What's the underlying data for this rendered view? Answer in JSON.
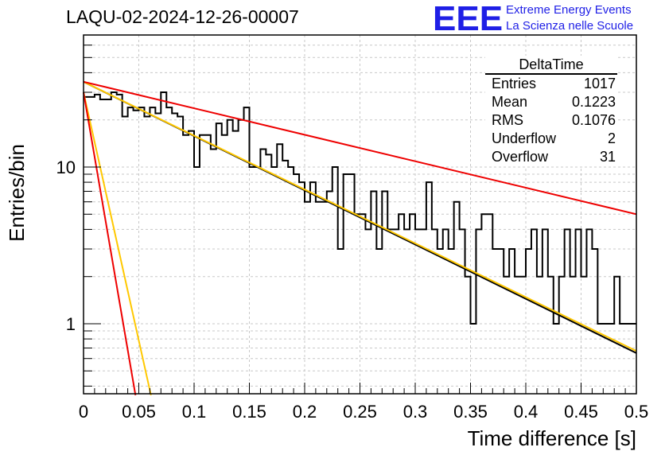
{
  "title": "LAQU-02-2024-12-26-00007",
  "logo": {
    "mark": "EEE",
    "line1": "Extreme Energy Events",
    "line2": "La Scienza nelle Scuole"
  },
  "stats": {
    "name": "DeltaTime",
    "rows": [
      {
        "label": "Entries",
        "value": "1017"
      },
      {
        "label": "Mean",
        "value": "0.1223"
      },
      {
        "label": "RMS",
        "value": "0.1076"
      },
      {
        "label": "Underflow",
        "value": "2"
      },
      {
        "label": "Overflow",
        "value": "31"
      }
    ]
  },
  "chart_data": {
    "type": "histogram",
    "xlabel": "Time difference [s]",
    "ylabel": "Entries/bin",
    "xlim": [
      0,
      0.5
    ],
    "ylim": [
      0.35,
      60
    ],
    "log_y": true,
    "grid": true,
    "x_ticks": [
      "0",
      "0.05",
      "0.1",
      "0.15",
      "0.2",
      "0.25",
      "0.3",
      "0.35",
      "0.4",
      "0.45",
      "0.5"
    ],
    "y_ticks": [
      "1",
      "10"
    ],
    "bin_width": 0.005,
    "counts": [
      28,
      28,
      29,
      27,
      27,
      30,
      29,
      21,
      24,
      23,
      24,
      21,
      24,
      22,
      30,
      24,
      22,
      21,
      16,
      17,
      10,
      16,
      16,
      13,
      19,
      16,
      20,
      17,
      20,
      24,
      10,
      10,
      13,
      12,
      10,
      14,
      11,
      10,
      9,
      8,
      6,
      8,
      6,
      6,
      7,
      10,
      3,
      9,
      9,
      5,
      5,
      4,
      7,
      3,
      7,
      4,
      4,
      5,
      4,
      5,
      4,
      4,
      8,
      4,
      3,
      4,
      3,
      6,
      4,
      2,
      1,
      4,
      5,
      5,
      3,
      3,
      2,
      3,
      2,
      2,
      3,
      4,
      2,
      4,
      2,
      1,
      2,
      4,
      2,
      4,
      2,
      4,
      3,
      1,
      1,
      1,
      2,
      1,
      1,
      1
    ],
    "fits": [
      {
        "color": "#000000",
        "values_at": [
          [
            0,
            35
          ],
          [
            0.5,
            0.65
          ]
        ]
      },
      {
        "color": "#ffc800",
        "values_at": [
          [
            0,
            35
          ],
          [
            0.5,
            0.67
          ]
        ]
      },
      {
        "color": "#ee0000",
        "values_at": [
          [
            0,
            35
          ],
          [
            0.5,
            5.0
          ]
        ]
      },
      {
        "color": "#ffc800",
        "values_at": [
          [
            0,
            30
          ],
          [
            0.061,
            0.35
          ]
        ]
      },
      {
        "color": "#ee0000",
        "values_at": [
          [
            0,
            30
          ],
          [
            0.047,
            0.35
          ]
        ]
      }
    ]
  }
}
